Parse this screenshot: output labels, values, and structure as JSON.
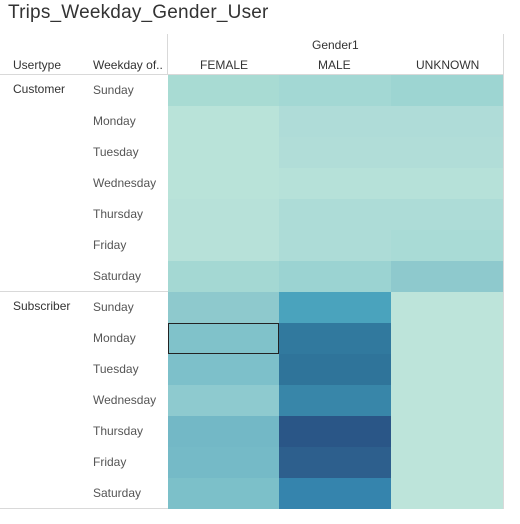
{
  "title": "Trips_Weekday_Gender_User",
  "header": {
    "col_group_label": "Gender1",
    "row_header_usertype": "Usertype",
    "row_header_weekday": "Weekday of..",
    "gender_columns": [
      "FEMALE",
      "MALE",
      "UNKNOWN"
    ]
  },
  "chart_data": {
    "type": "heatmap",
    "title": "Trips_Weekday_Gender_User",
    "column_field": "Gender1",
    "row_fields": [
      "Usertype",
      "Weekday of.."
    ],
    "columns": [
      "FEMALE",
      "MALE",
      "UNKNOWN"
    ],
    "groups": [
      {
        "usertype": "Customer",
        "rows": [
          {
            "weekday": "Sunday",
            "colors": [
              "#a8dbd3",
              "#a3d8d4",
              "#9dd5d2"
            ]
          },
          {
            "weekday": "Monday",
            "colors": [
              "#b9e3d9",
              "#afdcd8",
              "#afdcd8"
            ]
          },
          {
            "weekday": "Tuesday",
            "colors": [
              "#b9e3d9",
              "#b1ddd8",
              "#b1ddd8"
            ]
          },
          {
            "weekday": "Wednesday",
            "colors": [
              "#b9e3d9",
              "#b6e1d9",
              "#b6e1d9"
            ]
          },
          {
            "weekday": "Thursday",
            "colors": [
              "#b7e1d9",
              "#addcd7",
              "#addcd7"
            ]
          },
          {
            "weekday": "Friday",
            "colors": [
              "#b7e1d9",
              "#addcd7",
              "#a9dbd6"
            ]
          },
          {
            "weekday": "Saturday",
            "colors": [
              "#a4d8d3",
              "#9bd3d2",
              "#8ec9cd"
            ]
          }
        ]
      },
      {
        "usertype": "Subscriber",
        "rows": [
          {
            "weekday": "Sunday",
            "colors": [
              "#8ec9cd",
              "#4aa3bd",
              "#bde4da"
            ]
          },
          {
            "weekday": "Monday",
            "colors": [
              "#80c2ca",
              "#31799e",
              "#bde4da"
            ]
          },
          {
            "weekday": "Tuesday",
            "colors": [
              "#7dc0ca",
              "#2f749a",
              "#bde4da"
            ]
          },
          {
            "weekday": "Wednesday",
            "colors": [
              "#8ecacf",
              "#3886a9",
              "#bde4da"
            ]
          },
          {
            "weekday": "Thursday",
            "colors": [
              "#73b8c6",
              "#2a5687",
              "#bde4da"
            ]
          },
          {
            "weekday": "Friday",
            "colors": [
              "#75bac7",
              "#2d5f8d",
              "#bde4da"
            ]
          },
          {
            "weekday": "Saturday",
            "colors": [
              "#7cc0c9",
              "#3584ad",
              "#bde4da"
            ]
          }
        ]
      }
    ],
    "selected_cell": {
      "usertype": "Subscriber",
      "weekday": "Monday",
      "gender": "FEMALE"
    }
  }
}
